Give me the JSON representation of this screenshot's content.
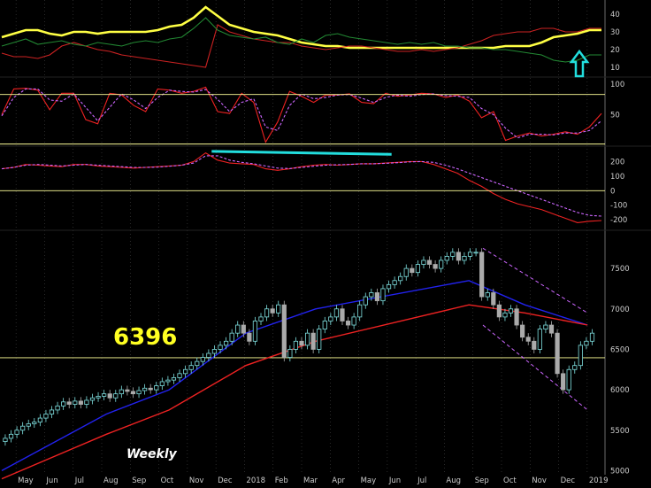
{
  "chart_data": [
    {
      "type": "line",
      "panel": "adx",
      "y_ticks": [
        10,
        20,
        30,
        40
      ],
      "ylim": [
        5,
        48
      ],
      "x": [
        0,
        4,
        8,
        12,
        16,
        20,
        24,
        28,
        32,
        36,
        40,
        44,
        48,
        52,
        56,
        60,
        64,
        68,
        72,
        76,
        80,
        84,
        88,
        92,
        96,
        100,
        104,
        108,
        112,
        116,
        120,
        124,
        128,
        132,
        136,
        140,
        144,
        148,
        152,
        156,
        160,
        164,
        168,
        172,
        176,
        180,
        184,
        188,
        192,
        196,
        200
      ],
      "series": [
        {
          "color": "#ffff44",
          "values": [
            27,
            29,
            31,
            31,
            29,
            28,
            30,
            30,
            29,
            30,
            30,
            30,
            30,
            31,
            33,
            34,
            38,
            44,
            39,
            34,
            32,
            30,
            29,
            28,
            26,
            24,
            23,
            22,
            22,
            21,
            21,
            21,
            21,
            21,
            21,
            21,
            21,
            21,
            21,
            21,
            21,
            21,
            22,
            22,
            22,
            24,
            27,
            28,
            29,
            31,
            31
          ]
        },
        {
          "color": "#cc2222",
          "values": [
            18,
            16,
            16,
            15,
            17,
            22,
            24,
            22,
            20,
            19,
            17,
            16,
            15,
            14,
            13,
            12,
            11,
            10,
            34,
            30,
            28,
            26,
            25,
            24,
            24,
            22,
            21,
            20,
            21,
            22,
            22,
            21,
            20,
            19,
            19,
            20,
            19,
            20,
            21,
            23,
            25,
            28,
            29,
            30,
            30,
            32,
            32,
            30,
            30,
            32,
            32
          ]
        },
        {
          "color": "#228833",
          "values": [
            22,
            24,
            26,
            23,
            24,
            25,
            23,
            22,
            24,
            23,
            22,
            24,
            25,
            24,
            26,
            27,
            32,
            38,
            31,
            28,
            27,
            26,
            27,
            24,
            23,
            26,
            24,
            28,
            29,
            27,
            26,
            25,
            24,
            23,
            24,
            23,
            24,
            22,
            22,
            21,
            21,
            20,
            20,
            19,
            18,
            17,
            14,
            13,
            14,
            17,
            17
          ]
        }
      ]
    },
    {
      "type": "line",
      "panel": "stochastic",
      "y_ticks": [
        50,
        100
      ],
      "ylim": [
        0,
        110
      ],
      "reference_lines": [
        83,
        2
      ],
      "x": [
        0,
        4,
        8,
        12,
        16,
        20,
        24,
        28,
        32,
        36,
        40,
        44,
        48,
        52,
        56,
        60,
        64,
        68,
        72,
        76,
        80,
        84,
        88,
        92,
        96,
        100,
        104,
        108,
        112,
        116,
        120,
        124,
        128,
        132,
        136,
        140,
        144,
        148,
        152,
        156,
        160,
        164,
        168,
        172,
        176,
        180,
        184,
        188,
        192,
        196,
        200
      ],
      "series": [
        {
          "color": "#ee2222",
          "values": [
            50,
            92,
            93,
            90,
            58,
            85,
            85,
            42,
            35,
            85,
            82,
            65,
            55,
            92,
            90,
            85,
            88,
            95,
            55,
            52,
            85,
            70,
            5,
            38,
            88,
            80,
            70,
            82,
            82,
            84,
            70,
            68,
            85,
            80,
            82,
            85,
            84,
            78,
            82,
            72,
            45,
            55,
            8,
            15,
            20,
            15,
            18,
            22,
            18,
            30,
            52
          ]
        },
        {
          "color": "#cc66ff",
          "values": [
            48,
            78,
            92,
            92,
            74,
            72,
            84,
            62,
            40,
            62,
            84,
            74,
            60,
            78,
            90,
            88,
            87,
            91,
            75,
            55,
            70,
            76,
            30,
            24,
            65,
            84,
            76,
            78,
            82,
            83,
            77,
            70,
            78,
            82,
            80,
            83,
            84,
            81,
            80,
            78,
            60,
            50,
            28,
            12,
            18,
            18,
            17,
            20,
            20,
            24,
            40
          ]
        }
      ]
    },
    {
      "type": "line",
      "panel": "cci",
      "y_ticks": [
        -200,
        -100,
        0,
        100,
        200
      ],
      "ylim": [
        -260,
        300
      ],
      "reference_lines": [
        0
      ],
      "x": [
        0,
        4,
        8,
        12,
        16,
        20,
        24,
        28,
        32,
        36,
        40,
        44,
        48,
        52,
        56,
        60,
        64,
        68,
        72,
        76,
        80,
        84,
        88,
        92,
        96,
        100,
        104,
        108,
        112,
        116,
        120,
        124,
        128,
        132,
        136,
        140,
        144,
        148,
        152,
        156,
        160,
        164,
        168,
        172,
        176,
        180,
        184,
        188,
        192,
        196,
        200
      ],
      "series": [
        {
          "color": "#ee2222",
          "values": [
            150,
            160,
            180,
            175,
            170,
            165,
            180,
            180,
            170,
            165,
            160,
            155,
            160,
            165,
            170,
            175,
            200,
            260,
            210,
            190,
            185,
            180,
            150,
            140,
            150,
            165,
            175,
            180,
            175,
            180,
            185,
            185,
            190,
            195,
            200,
            200,
            180,
            150,
            120,
            70,
            30,
            -20,
            -60,
            -90,
            -110,
            -130,
            -160,
            -190,
            -220,
            -210,
            -205
          ]
        },
        {
          "color": "#cc66ff",
          "values": [
            150,
            160,
            175,
            180,
            175,
            170,
            175,
            180,
            175,
            170,
            165,
            160,
            160,
            162,
            168,
            175,
            190,
            240,
            240,
            210,
            195,
            185,
            170,
            155,
            152,
            160,
            168,
            175,
            178,
            180,
            185,
            185,
            188,
            192,
            198,
            200,
            195,
            175,
            150,
            120,
            90,
            60,
            30,
            0,
            -30,
            -60,
            -90,
            -120,
            -150,
            -170,
            -175
          ]
        },
        {
          "color": "#22dddd",
          "x": [
            70,
            130
          ],
          "values": [
            270,
            250
          ]
        }
      ]
    },
    {
      "type": "candlestick",
      "panel": "price",
      "x_ticks": [
        "May",
        "Jun",
        "Jul",
        "Aug",
        "Sep",
        "Oct",
        "Nov",
        "Dec",
        "2018",
        "Feb",
        "Mar",
        "Apr",
        "May",
        "Jun",
        "Jul",
        "Aug",
        "Sep",
        "Oct",
        "Nov",
        "Dec",
        "2019"
      ],
      "x_tick_positions": [
        4,
        12,
        20,
        28,
        36,
        44,
        52,
        60,
        68,
        76,
        84,
        92,
        100,
        108,
        116,
        124,
        132,
        140,
        148,
        156,
        164
      ],
      "y_ticks": [
        5000,
        5500,
        6000,
        6500,
        7000,
        7500
      ],
      "ylim": [
        4950,
        7950
      ],
      "reference_line": 6396,
      "annotation": "6396",
      "label": "Weekly",
      "closes": [
        5400,
        5450,
        5500,
        5550,
        5580,
        5600,
        5650,
        5700,
        5750,
        5800,
        5850,
        5820,
        5860,
        5820,
        5870,
        5900,
        5920,
        5950,
        5900,
        5950,
        6000,
        5980,
        5950,
        5990,
        6020,
        6000,
        6050,
        6100,
        6120,
        6150,
        6200,
        6250,
        6300,
        6350,
        6400,
        6450,
        6500,
        6550,
        6600,
        6700,
        6800,
        6700,
        6600,
        6850,
        6900,
        7000,
        6950,
        7050,
        6400,
        6500,
        6600,
        6550,
        6700,
        6500,
        6750,
        6850,
        6900,
        7000,
        6850,
        6800,
        6900,
        7050,
        7150,
        7200,
        7100,
        7250,
        7300,
        7350,
        7400,
        7500,
        7450,
        7550,
        7600,
        7550,
        7500,
        7600,
        7650,
        7700,
        7600,
        7650,
        7700,
        7700,
        7150,
        7200,
        7050,
        6900,
        6950,
        7000,
        6800,
        6650,
        6600,
        6500,
        6750,
        6800,
        6700,
        6200,
        6000,
        6250,
        6300,
        6550,
        6600,
        6700
      ],
      "moving_averages": [
        {
          "color": "#2222ee",
          "values": [
            5000,
            5700,
            6000,
            6700,
            7000,
            7350,
            7050,
            6800
          ]
        },
        {
          "color": "#ee2222",
          "values": [
            4900,
            5450,
            5750,
            6300,
            6600,
            7050,
            6950,
            6800
          ]
        }
      ],
      "ma_x": [
        0,
        30,
        48,
        70,
        90,
        134,
        150,
        168
      ],
      "channel": [
        {
          "color": "#cc66ff",
          "x": [
            138,
            168
          ],
          "values": [
            7750,
            6950
          ]
        },
        {
          "color": "#cc66ff",
          "x": [
            138,
            168
          ],
          "values": [
            6800,
            5750
          ]
        }
      ]
    }
  ],
  "arrow": {
    "direction": "up",
    "color": "#22dddd"
  }
}
